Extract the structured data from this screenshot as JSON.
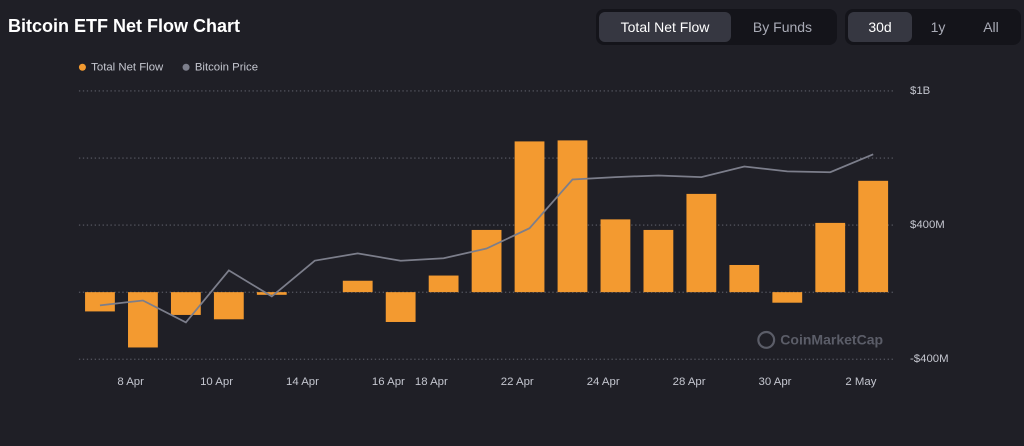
{
  "header": {
    "title": "Bitcoin ETF Net Flow Chart",
    "view_tabs": [
      "Total Net Flow",
      "By Funds"
    ],
    "active_view": 0,
    "range_tabs": [
      "30d",
      "1y",
      "All"
    ],
    "active_range": 0
  },
  "watermark": "CoinMarketCap",
  "chart_data": {
    "type": "bar",
    "categories": [
      null,
      "8 Apr",
      null,
      "10 Apr",
      null,
      "14 Apr",
      null,
      "16 Apr",
      "18 Apr",
      null,
      "22 Apr",
      null,
      "24 Apr",
      null,
      "28 Apr",
      null,
      "30 Apr",
      null,
      "2 May"
    ],
    "series": [
      {
        "name": "Total Net Flow",
        "color": "#f39a30",
        "values": [
          -115,
          -330,
          -136,
          -162,
          -16,
          0,
          68,
          -178,
          99,
          371,
          899,
          905,
          434,
          371,
          586,
          162,
          -63,
          413,
          664
        ]
      },
      {
        "name": "Bitcoin Price",
        "color": "#7c7e8b",
        "type": "line",
        "axis": "y2",
        "values": [
          78100,
          78700,
          76000,
          82400,
          79200,
          83600,
          84500,
          83600,
          83900,
          85100,
          87600,
          93600,
          93900,
          94100,
          93900,
          95200,
          94600,
          94500,
          96700
        ]
      }
    ],
    "ylim": [
      -400,
      1200
    ],
    "yticks": [
      {
        "value": 1200,
        "label": "$1B"
      },
      {
        "value": 400,
        "label": "$400M"
      },
      {
        "value": -400,
        "label": "-$400M"
      }
    ],
    "ygrid": [
      800,
      0
    ],
    "y2lim": [
      71464,
      104512
    ],
    "grid": true
  }
}
